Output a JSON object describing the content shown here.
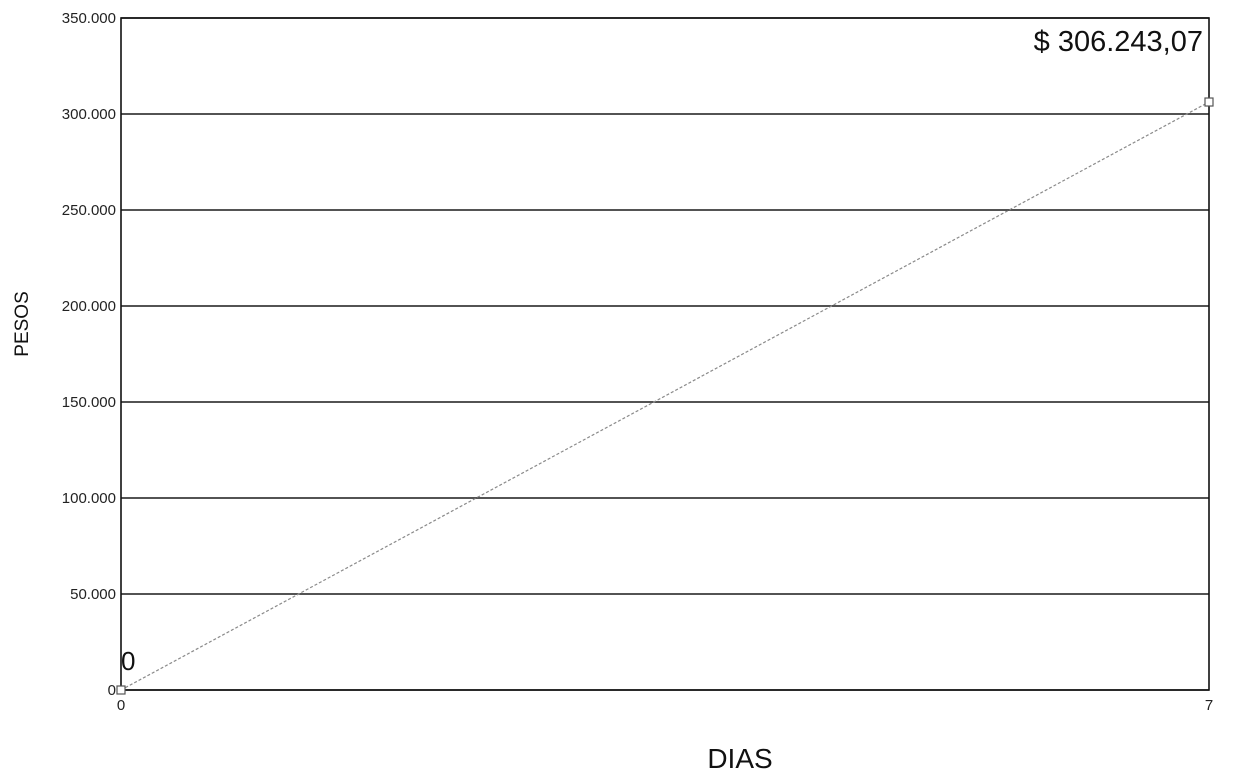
{
  "chart_data": {
    "type": "line",
    "title": "",
    "xlabel": "DIAS",
    "ylabel": "PESOS",
    "xlim": [
      0,
      7
    ],
    "ylim": [
      0,
      350000
    ],
    "x_ticks": [
      "0",
      "7"
    ],
    "y_ticks": [
      {
        "value": 0,
        "label": "0"
      },
      {
        "value": 50000,
        "label": "50.000"
      },
      {
        "value": 100000,
        "label": "100.000"
      },
      {
        "value": 150000,
        "label": "150.000"
      },
      {
        "value": 200000,
        "label": "200.000"
      },
      {
        "value": 250000,
        "label": "250.000"
      },
      {
        "value": 300000,
        "label": "300.000"
      },
      {
        "value": 350000,
        "label": "350.000"
      }
    ],
    "grid": true,
    "series": [
      {
        "points": [
          {
            "x": 0,
            "y": 0,
            "label": "0"
          },
          {
            "x": 7,
            "y": 306243.07,
            "label": "$ 306.243,07"
          }
        ]
      }
    ]
  }
}
